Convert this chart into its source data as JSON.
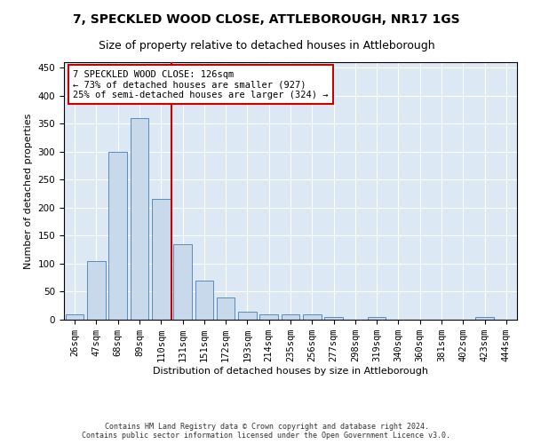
{
  "title": "7, SPECKLED WOOD CLOSE, ATTLEBOROUGH, NR17 1GS",
  "subtitle": "Size of property relative to detached houses in Attleborough",
  "xlabel": "Distribution of detached houses by size in Attleborough",
  "ylabel": "Number of detached properties",
  "categories": [
    "26sqm",
    "47sqm",
    "68sqm",
    "89sqm",
    "110sqm",
    "131sqm",
    "151sqm",
    "172sqm",
    "193sqm",
    "214sqm",
    "235sqm",
    "256sqm",
    "277sqm",
    "298sqm",
    "319sqm",
    "340sqm",
    "360sqm",
    "381sqm",
    "402sqm",
    "423sqm",
    "444sqm"
  ],
  "values": [
    10,
    105,
    300,
    360,
    215,
    135,
    70,
    40,
    15,
    10,
    10,
    10,
    5,
    0,
    5,
    0,
    0,
    0,
    0,
    5,
    0
  ],
  "bar_color": "#c8d9ec",
  "bar_edge_color": "#5a8abf",
  "highlight_line_color": "#cc0000",
  "annotation_line1": "7 SPECKLED WOOD CLOSE: 126sqm",
  "annotation_line2": "← 73% of detached houses are smaller (927)",
  "annotation_line3": "25% of semi-detached houses are larger (324) →",
  "annotation_box_color": "#ffffff",
  "annotation_box_edge": "#cc0000",
  "ylim": [
    0,
    460
  ],
  "yticks": [
    0,
    50,
    100,
    150,
    200,
    250,
    300,
    350,
    400,
    450
  ],
  "background_color": "#dce9f5",
  "footer": "Contains HM Land Registry data © Crown copyright and database right 2024.\nContains public sector information licensed under the Open Government Licence v3.0.",
  "title_fontsize": 10,
  "subtitle_fontsize": 9,
  "axis_label_fontsize": 8,
  "tick_fontsize": 7.5,
  "annotation_fontsize": 7.5,
  "footer_fontsize": 6
}
